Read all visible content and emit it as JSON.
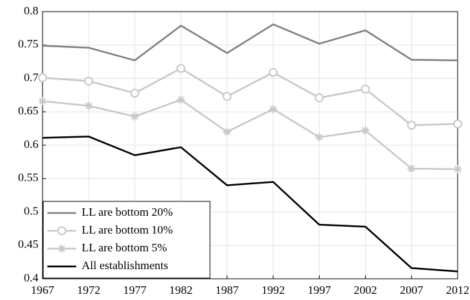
{
  "chart_data": {
    "type": "line",
    "x": [
      1967,
      1972,
      1977,
      1982,
      1987,
      1992,
      1997,
      2002,
      2007,
      2012
    ],
    "xlim": [
      1967,
      2012
    ],
    "xticks": [
      1967,
      1972,
      1977,
      1982,
      1987,
      1992,
      1997,
      2002,
      2007,
      2012
    ],
    "ylim": [
      0.4,
      0.8
    ],
    "yticks": [
      0.4,
      0.45,
      0.5,
      0.55,
      0.6,
      0.65,
      0.7,
      0.75,
      0.8
    ],
    "grid": true,
    "legend": "lower-left",
    "series": [
      {
        "name": "LL are bottom 20%",
        "color": "#808080",
        "marker": "none",
        "values": [
          0.749,
          0.746,
          0.727,
          0.779,
          0.738,
          0.781,
          0.752,
          0.772,
          0.728,
          0.727
        ]
      },
      {
        "name": "LL are bottom 10%",
        "color": "#c8c8c8",
        "marker": "circle",
        "values": [
          0.701,
          0.696,
          0.678,
          0.715,
          0.673,
          0.709,
          0.671,
          0.684,
          0.63,
          0.632
        ]
      },
      {
        "name": "LL are bottom 5%",
        "color": "#c8c8c8",
        "marker": "asterisk",
        "values": [
          0.666,
          0.659,
          0.643,
          0.668,
          0.62,
          0.654,
          0.612,
          0.622,
          0.565,
          0.564
        ]
      },
      {
        "name": "All establishments",
        "color": "#000000",
        "marker": "none",
        "values": [
          0.611,
          0.613,
          0.585,
          0.597,
          0.54,
          0.545,
          0.481,
          0.478,
          0.416,
          0.411
        ]
      }
    ]
  }
}
